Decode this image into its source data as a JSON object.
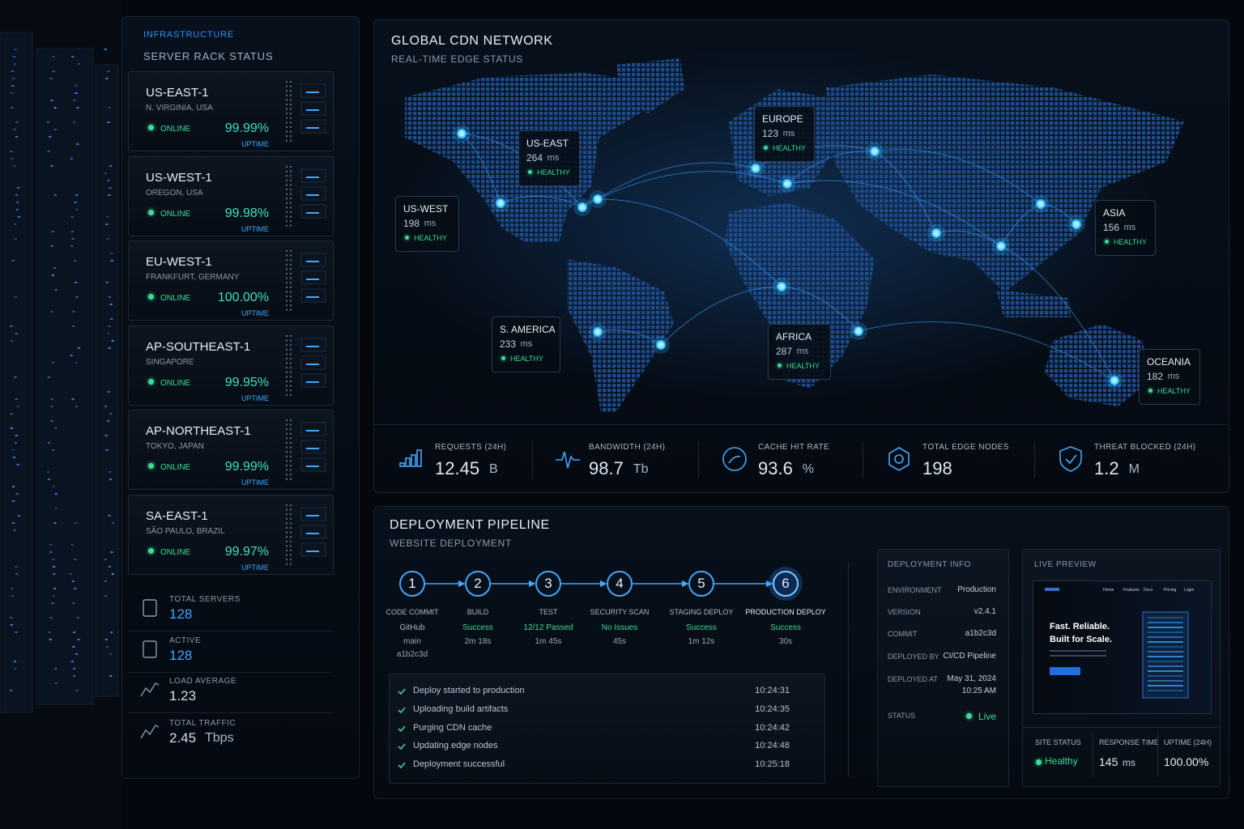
{
  "rack": {
    "eyebrow": "INFRASTRUCTURE",
    "title": "SERVER RACK STATUS",
    "servers": [
      {
        "name": "US-EAST-1",
        "location": "N. VIRGINIA, USA",
        "status": "ONLINE",
        "uptime": "99.99%",
        "uptime_label": "UPTIME"
      },
      {
        "name": "US-WEST-1",
        "location": "OREGON, USA",
        "status": "ONLINE",
        "uptime": "99.98%",
        "uptime_label": "UPTIME"
      },
      {
        "name": "EU-WEST-1",
        "location": "FRANKFURT, GERMANY",
        "status": "ONLINE",
        "uptime": "100.00%",
        "uptime_label": "UPTIME"
      },
      {
        "name": "AP-SOUTHEAST-1",
        "location": "SINGAPORE",
        "status": "ONLINE",
        "uptime": "99.95%",
        "uptime_label": "UPTIME"
      },
      {
        "name": "AP-NORTHEAST-1",
        "location": "TOKYO, JAPAN",
        "status": "ONLINE",
        "uptime": "99.99%",
        "uptime_label": "UPTIME"
      },
      {
        "name": "SA-EAST-1",
        "location": "SÃO PAULO, BRAZIL",
        "status": "ONLINE",
        "uptime": "99.97%",
        "uptime_label": "UPTIME"
      }
    ],
    "stats": [
      {
        "label": "TOTAL SERVERS",
        "value": "128"
      },
      {
        "label": "ACTIVE",
        "value": "128"
      },
      {
        "label": "LOAD AVERAGE",
        "value": "1.23"
      },
      {
        "label": "TOTAL TRAFFIC",
        "value": "2.45",
        "unit": "Tbps"
      }
    ]
  },
  "map": {
    "title": "GLOBAL CDN NETWORK",
    "subtitle": "REAL-TIME EDGE STATUS",
    "regions": [
      {
        "name": "US-WEST",
        "latency": "198",
        "unit": "ms",
        "status": "HEALTHY"
      },
      {
        "name": "US-EAST",
        "latency": "264",
        "unit": "ms",
        "status": "HEALTHY"
      },
      {
        "name": "EUROPE",
        "latency": "123",
        "unit": "ms",
        "status": "HEALTHY"
      },
      {
        "name": "ASIA",
        "latency": "156",
        "unit": "ms",
        "status": "HEALTHY"
      },
      {
        "name": "S. AMERICA",
        "latency": "233",
        "unit": "ms",
        "status": "HEALTHY"
      },
      {
        "name": "AFRICA",
        "latency": "287",
        "unit": "ms",
        "status": "HEALTHY"
      },
      {
        "name": "OCEANIA",
        "latency": "182",
        "unit": "ms",
        "status": "HEALTHY"
      }
    ],
    "metrics": [
      {
        "label": "REQUESTS (24H)",
        "value": "12.45",
        "unit": "B"
      },
      {
        "label": "BANDWIDTH (24H)",
        "value": "98.7",
        "unit": "Tb"
      },
      {
        "label": "CACHE HIT RATE",
        "value": "93.6",
        "unit": "%"
      },
      {
        "label": "TOTAL EDGE NODES",
        "value": "198"
      },
      {
        "label": "THREAT BLOCKED (24H)",
        "value": "1.2",
        "unit": "M"
      }
    ]
  },
  "pipeline": {
    "title": "DEPLOYMENT PIPELINE",
    "subtitle": "WEBSITE DEPLOYMENT",
    "steps": [
      {
        "number": "1",
        "name": "CODE COMMIT",
        "status": "GitHub",
        "details": [
          "main",
          "a1b2c3d"
        ]
      },
      {
        "number": "2",
        "name": "BUILD",
        "status": "Success",
        "details": [
          "2m 18s"
        ]
      },
      {
        "number": "3",
        "name": "TEST",
        "status": "12/12 Passed",
        "details": [
          "1m 45s"
        ]
      },
      {
        "number": "4",
        "name": "SECURITY SCAN",
        "status": "No Issues",
        "details": [
          "45s"
        ]
      },
      {
        "number": "5",
        "name": "STAGING DEPLOY",
        "status": "Success",
        "details": [
          "1m 12s"
        ]
      },
      {
        "number": "6",
        "name": "PRODUCTION DEPLOY",
        "status": "Success",
        "details": [
          "30s"
        ]
      }
    ],
    "log": [
      {
        "message": "Deploy started to production",
        "time": "10:24:31"
      },
      {
        "message": "Uploading build artifacts",
        "time": "10:24:35"
      },
      {
        "message": "Purging CDN cache",
        "time": "10:24:42"
      },
      {
        "message": "Updating edge nodes",
        "time": "10:24:48"
      },
      {
        "message": "Deployment successful",
        "time": "10:25:18"
      }
    ]
  },
  "info": {
    "title": "DEPLOYMENT INFO",
    "rows": [
      {
        "label": "ENVIRONMENT",
        "value": "Production"
      },
      {
        "label": "VERSION",
        "value": "v2.4.1"
      },
      {
        "label": "COMMIT",
        "value": "a1b2c3d"
      },
      {
        "label": "DEPLOYED BY",
        "value": "CI/CD Pipeline"
      },
      {
        "label": "DEPLOYED AT",
        "value": "May 31, 2024",
        "time": "10:25 AM"
      },
      {
        "label": "STATUS",
        "value": "Live"
      }
    ]
  },
  "preview": {
    "title": "LIVE PREVIEW",
    "nav": [
      "Home",
      "Features",
      "Docs",
      "Pricing",
      "Login"
    ],
    "headline": [
      "Fast. Reliable.",
      "Built for Scale."
    ],
    "stats": [
      {
        "label": "SITE STATUS",
        "value": "Healthy"
      },
      {
        "label": "RESPONSE TIME",
        "value": "145",
        "unit": "ms"
      },
      {
        "label": "UPTIME (24H)",
        "value": "100.00%"
      }
    ]
  }
}
